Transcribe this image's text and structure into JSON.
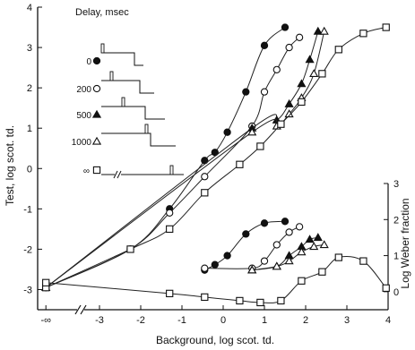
{
  "chart_data": {
    "type": "line",
    "xlabel": "Background, log scot. td.",
    "ylabel": "Test, log scot. td.",
    "y2label": "Log Weber fraction",
    "x_ticks": [
      "-∞",
      "-3",
      "-2",
      "-1",
      "0",
      "1",
      "2",
      "3",
      "4"
    ],
    "y_ticks": [
      "4",
      "3",
      "2",
      "1",
      "0",
      "-1",
      "-2",
      "-3"
    ],
    "y2_ticks": [
      "3",
      "2",
      "1",
      "0"
    ],
    "xlim": [
      -4.5,
      4.0
    ],
    "ylim": [
      -3.5,
      4.0
    ],
    "y2lim": [
      -0.5,
      3.0
    ],
    "legend": {
      "title": "Delay, msec",
      "entries": [
        {
          "label": "0",
          "marker": "filled-circle"
        },
        {
          "label": "200",
          "marker": "open-circle"
        },
        {
          "label": "500",
          "marker": "filled-triangle"
        },
        {
          "label": "1000",
          "marker": "open-triangle"
        },
        {
          "label": "∞",
          "marker": "open-square"
        }
      ]
    },
    "series": [
      {
        "name": "0",
        "marker": "filled-circle",
        "x": [
          -4.3,
          -2.25,
          -1.3,
          -0.45,
          -0.2,
          0.1,
          0.55,
          1.0,
          1.5
        ],
        "y": [
          -2.95,
          -2.0,
          -1.0,
          0.2,
          0.4,
          0.9,
          1.9,
          3.05,
          3.5
        ],
        "weber_x": [
          -0.45,
          -0.2,
          0.1,
          0.55,
          1.0,
          1.5
        ],
        "weber_y": [
          0.6,
          0.75,
          1.0,
          1.6,
          1.9,
          1.95
        ]
      },
      {
        "name": "200",
        "marker": "open-circle",
        "x": [
          -4.3,
          -2.25,
          -1.3,
          -0.45,
          0.7,
          1.0,
          1.3,
          1.6,
          1.85
        ],
        "y": [
          -2.95,
          -2.0,
          -1.1,
          -0.2,
          1.05,
          1.9,
          2.45,
          3.0,
          3.25
        ],
        "weber_x": [
          -0.45,
          0.7,
          1.0,
          1.3,
          1.6,
          1.85
        ],
        "weber_y": [
          0.65,
          0.65,
          0.85,
          1.3,
          1.65,
          1.8
        ]
      },
      {
        "name": "500",
        "marker": "filled-triangle",
        "x": [
          -4.3,
          0.7,
          1.3,
          1.6,
          1.9,
          2.1,
          2.3
        ],
        "y": [
          -2.95,
          1.0,
          1.2,
          1.6,
          2.1,
          2.7,
          3.4
        ],
        "weber_x": [
          0.7,
          1.3,
          1.6,
          1.9,
          2.1,
          2.3
        ],
        "weber_y": [
          0.6,
          0.7,
          1.0,
          1.25,
          1.45,
          1.5
        ]
      },
      {
        "name": "1000",
        "marker": "open-triangle",
        "x": [
          -4.3,
          0.7,
          1.3,
          1.6,
          1.9,
          2.2,
          2.45
        ],
        "y": [
          -2.95,
          0.9,
          1.05,
          1.35,
          1.75,
          2.35,
          3.4
        ],
        "weber_x": [
          0.7,
          1.3,
          1.6,
          1.9,
          2.2,
          2.45
        ],
        "weber_y": [
          0.6,
          0.7,
          0.85,
          1.1,
          1.25,
          1.3
        ]
      },
      {
        "name": "∞",
        "marker": "open-square",
        "x": [
          -4.3,
          -2.25,
          -1.3,
          -0.45,
          0.4,
          0.9,
          1.4,
          1.9,
          2.4,
          2.8,
          3.4,
          3.95
        ],
        "y": [
          -2.95,
          -2.0,
          -1.5,
          -0.6,
          0.1,
          0.55,
          1.1,
          1.65,
          2.35,
          2.95,
          3.35,
          3.5
        ],
        "weber_x": [
          -4.3,
          -1.3,
          -0.45,
          0.4,
          0.9,
          1.4,
          1.9,
          2.4,
          2.8,
          3.4,
          3.95
        ],
        "weber_y": [
          0.25,
          -0.05,
          -0.15,
          -0.25,
          -0.3,
          -0.25,
          0.3,
          0.55,
          0.95,
          0.85,
          0.1
        ]
      }
    ]
  }
}
